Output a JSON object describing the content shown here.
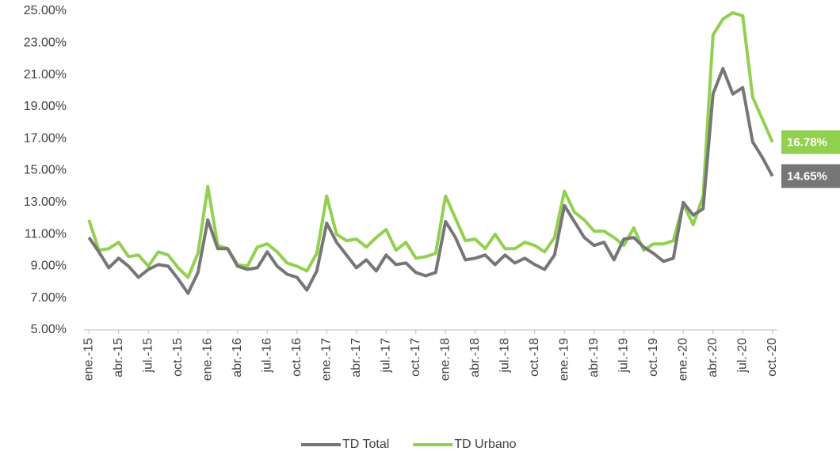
{
  "chart_data": {
    "type": "line",
    "categories": [
      "ene.-15",
      null,
      null,
      "abr.-15",
      null,
      null,
      "jul.-15",
      null,
      null,
      "oct.-15",
      null,
      null,
      "ene.-16",
      null,
      null,
      "abr.-16",
      null,
      null,
      "jul.-16",
      null,
      null,
      "oct.-16",
      null,
      null,
      "ene.-17",
      null,
      null,
      "abr.-17",
      null,
      null,
      "jul.-17",
      null,
      null,
      "oct.-17",
      null,
      null,
      "ene.-18",
      null,
      null,
      "abr.-18",
      null,
      null,
      "jul.-18",
      null,
      null,
      "oct.-18",
      null,
      null,
      "ene.-19",
      null,
      null,
      "abr.-19",
      null,
      null,
      "jul.-19",
      null,
      null,
      "oct.-19",
      null,
      null,
      "ene.-20",
      null,
      null,
      "abr.-20",
      null,
      null,
      "jul.-20",
      null,
      null,
      "oct.-20"
    ],
    "series": [
      {
        "name": "TD Total",
        "color": "#767676",
        "values": [
          10.8,
          9.9,
          8.9,
          9.5,
          9.0,
          8.3,
          8.8,
          9.1,
          9.0,
          8.2,
          7.3,
          8.6,
          11.9,
          10.1,
          10.1,
          9.0,
          8.8,
          8.9,
          9.9,
          9.0,
          8.5,
          8.3,
          7.5,
          8.7,
          11.7,
          10.5,
          9.7,
          8.9,
          9.4,
          8.7,
          9.7,
          9.1,
          9.2,
          8.6,
          8.4,
          8.6,
          11.8,
          10.8,
          9.4,
          9.5,
          9.7,
          9.1,
          9.7,
          9.2,
          9.5,
          9.1,
          8.8,
          9.7,
          12.8,
          11.8,
          10.8,
          10.3,
          10.5,
          9.4,
          10.7,
          10.8,
          10.2,
          9.8,
          9.3,
          9.5,
          13.0,
          12.2,
          12.6,
          19.8,
          21.4,
          19.8,
          20.2,
          16.8,
          15.8,
          14.65
        ],
        "value_labels": [
          null,
          null,
          null,
          null,
          null,
          null,
          null,
          null,
          null,
          null,
          null,
          null,
          null,
          null,
          null,
          null,
          null,
          null,
          null,
          null,
          null,
          null,
          null,
          null,
          null,
          null,
          null,
          null,
          null,
          null,
          null,
          null,
          null,
          null,
          null,
          null,
          null,
          null,
          null,
          null,
          null,
          null,
          null,
          null,
          null,
          null,
          null,
          null,
          null,
          null,
          null,
          null,
          null,
          null,
          null,
          null,
          null,
          null,
          null,
          null,
          null,
          null,
          null,
          null,
          null,
          null,
          null,
          null,
          null,
          "14.65%"
        ]
      },
      {
        "name": "TD Urbano",
        "color": "#92d050",
        "values": [
          11.9,
          10.0,
          10.1,
          10.5,
          9.6,
          9.7,
          9.0,
          9.9,
          9.7,
          8.9,
          8.3,
          9.8,
          14.0,
          10.3,
          10.1,
          9.1,
          9.0,
          10.2,
          10.4,
          9.9,
          9.2,
          9.0,
          8.7,
          9.8,
          13.4,
          11.0,
          10.6,
          10.7,
          10.2,
          10.8,
          11.3,
          10.0,
          10.5,
          9.5,
          9.6,
          9.8,
          13.4,
          12.0,
          10.6,
          10.7,
          10.1,
          11.0,
          10.1,
          10.1,
          10.5,
          10.3,
          9.9,
          10.8,
          13.7,
          12.4,
          11.9,
          11.2,
          11.2,
          10.8,
          10.3,
          11.4,
          10.0,
          10.4,
          10.4,
          10.6,
          12.9,
          11.6,
          13.4,
          23.5,
          24.5,
          24.9,
          24.7,
          19.6,
          18.2,
          16.78
        ],
        "value_labels": [
          null,
          null,
          null,
          null,
          null,
          null,
          null,
          null,
          null,
          null,
          null,
          null,
          null,
          null,
          null,
          null,
          null,
          null,
          null,
          null,
          null,
          null,
          null,
          null,
          null,
          null,
          null,
          null,
          null,
          null,
          null,
          null,
          null,
          null,
          null,
          null,
          null,
          null,
          null,
          null,
          null,
          null,
          null,
          null,
          null,
          null,
          null,
          null,
          null,
          null,
          null,
          null,
          null,
          null,
          null,
          null,
          null,
          null,
          null,
          null,
          null,
          null,
          null,
          null,
          null,
          null,
          null,
          null,
          null,
          "16.78%"
        ]
      }
    ],
    "ylim": [
      5,
      25
    ],
    "yticks": [
      {
        "value": 5,
        "label": "5.00%"
      },
      {
        "value": 7,
        "label": "7.00%"
      },
      {
        "value": 9,
        "label": "9.00%"
      },
      {
        "value": 11,
        "label": "11.00%"
      },
      {
        "value": 13,
        "label": "13.00%"
      },
      {
        "value": 15,
        "label": "15.00%"
      },
      {
        "value": 17,
        "label": "17.00%"
      },
      {
        "value": 19,
        "label": "19.00%"
      },
      {
        "value": 21,
        "label": "21.00%"
      },
      {
        "value": 23,
        "label": "23.00%"
      },
      {
        "value": 25,
        "label": "25.00%"
      }
    ],
    "grid": false,
    "legend": "bottom"
  }
}
